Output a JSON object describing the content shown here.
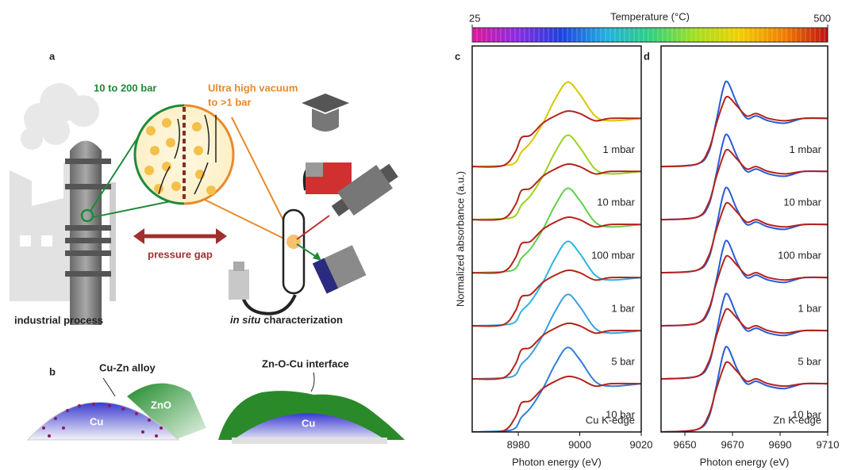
{
  "diagram": {
    "panel_a": {
      "label": "a",
      "high_pressure": "10 to 200 bar",
      "low_pressure": [
        "Ultra high vacuum",
        "to >1 bar"
      ],
      "gap": "pressure gap",
      "left_caption": "industrial process",
      "right_caption": {
        "italic": "in situ",
        "rest": "characterization"
      }
    },
    "panel_b": {
      "label": "b",
      "alloy": "Cu-Zn alloy",
      "oxide": "ZnO",
      "metal_left": "Cu",
      "interface": "Zn-O-Cu interface",
      "metal_right": "Cu"
    }
  },
  "chart_data": [
    {
      "type": "colorbar",
      "title": "Temperature (°C)",
      "xlim": [
        25,
        500
      ],
      "xticks": [
        25,
        500
      ],
      "colors": [
        "#e0169a",
        "#8a2be2",
        "#2040e0",
        "#20b0e0",
        "#30d080",
        "#a0e020",
        "#f0d000",
        "#f08000",
        "#c01010"
      ]
    },
    {
      "type": "line",
      "panel_label": "c",
      "note": "Cu K-edge",
      "xlabel": "Photon energy (eV)",
      "ylabel": "Normalized absorbance (a.u.)",
      "xlim": [
        8965,
        9020
      ],
      "xticks": [
        8980,
        9000,
        9020
      ],
      "ylim": [
        0,
        8
      ],
      "condition_labels": [
        "1 mbar",
        "10 mbar",
        "100 mbar",
        "1 bar",
        "5 bar",
        "10 bar"
      ],
      "x": [
        8965,
        8975,
        8979,
        8981,
        8984,
        8988,
        8992,
        8996,
        9000,
        9005,
        9010,
        9020
      ],
      "series": [
        {
          "color": "#d8c800",
          "values": [
            5.5,
            5.52,
            5.58,
            5.8,
            6.0,
            6.4,
            6.9,
            7.25,
            7.0,
            6.55,
            6.45,
            6.5
          ]
        },
        {
          "color": "#b3241b",
          "values": [
            5.5,
            5.52,
            5.8,
            6.1,
            6.15,
            6.4,
            6.55,
            6.65,
            6.6,
            6.45,
            6.5,
            6.5
          ]
        },
        {
          "color": "#9bd21e",
          "values": [
            4.4,
            4.42,
            4.48,
            4.7,
            4.9,
            5.3,
            5.8,
            6.15,
            5.9,
            5.45,
            5.35,
            5.4
          ]
        },
        {
          "color": "#b3241b",
          "values": [
            4.4,
            4.42,
            4.7,
            5.0,
            5.05,
            5.3,
            5.45,
            5.55,
            5.5,
            5.35,
            5.4,
            5.4
          ]
        },
        {
          "color": "#5fcf4a",
          "values": [
            3.3,
            3.32,
            3.38,
            3.6,
            3.8,
            4.2,
            4.7,
            5.05,
            4.8,
            4.35,
            4.25,
            4.3
          ]
        },
        {
          "color": "#b3241b",
          "values": [
            3.3,
            3.32,
            3.6,
            3.9,
            3.95,
            4.2,
            4.35,
            4.45,
            4.4,
            4.25,
            4.3,
            4.3
          ]
        },
        {
          "color": "#2bb6e0",
          "values": [
            2.2,
            2.22,
            2.28,
            2.5,
            2.7,
            3.1,
            3.6,
            3.95,
            3.7,
            3.25,
            3.15,
            3.2
          ]
        },
        {
          "color": "#b3241b",
          "values": [
            2.2,
            2.22,
            2.5,
            2.8,
            2.85,
            3.1,
            3.25,
            3.35,
            3.3,
            3.15,
            3.2,
            3.2
          ]
        },
        {
          "color": "#3aa0e0",
          "values": [
            1.1,
            1.12,
            1.18,
            1.4,
            1.6,
            2.0,
            2.5,
            2.85,
            2.6,
            2.15,
            2.05,
            2.1
          ]
        },
        {
          "color": "#b3241b",
          "values": [
            1.1,
            1.12,
            1.4,
            1.7,
            1.75,
            2.0,
            2.15,
            2.25,
            2.2,
            2.05,
            2.1,
            2.1
          ]
        },
        {
          "color": "#2f7fd8",
          "values": [
            0,
            0.02,
            0.08,
            0.3,
            0.5,
            0.9,
            1.4,
            1.75,
            1.5,
            1.05,
            0.95,
            1.0
          ]
        },
        {
          "color": "#b3241b",
          "values": [
            0,
            0.02,
            0.3,
            0.6,
            0.65,
            0.9,
            1.05,
            1.15,
            1.1,
            0.95,
            1.0,
            1.0
          ]
        }
      ]
    },
    {
      "type": "line",
      "panel_label": "d",
      "note": "Zn K-edge",
      "xlabel": "Photon energy (eV)",
      "xlim": [
        9640,
        9710
      ],
      "xticks": [
        9650,
        9670,
        9690,
        9710
      ],
      "ylim": [
        0,
        8
      ],
      "condition_labels": [
        "1 mbar",
        "10 mbar",
        "100 mbar",
        "1 bar",
        "5 bar",
        "10 bar"
      ],
      "x": [
        9640,
        9655,
        9660,
        9663,
        9666,
        9668,
        9672,
        9676,
        9680,
        9685,
        9692,
        9700,
        9710
      ],
      "series": [
        {
          "color": "#2a5bd7",
          "values": [
            5.5,
            5.55,
            5.8,
            6.4,
            7.1,
            7.25,
            6.8,
            6.5,
            6.55,
            6.45,
            6.4,
            6.5,
            6.5
          ]
        },
        {
          "color": "#b3241b",
          "values": [
            5.5,
            5.55,
            5.85,
            6.35,
            6.8,
            6.95,
            6.75,
            6.55,
            6.6,
            6.5,
            6.45,
            6.5,
            6.5
          ]
        },
        {
          "color": "#2a5bd7",
          "values": [
            4.4,
            4.45,
            4.7,
            5.3,
            6.0,
            6.15,
            5.7,
            5.4,
            5.45,
            5.35,
            5.3,
            5.4,
            5.4
          ]
        },
        {
          "color": "#b3241b",
          "values": [
            4.4,
            4.45,
            4.75,
            5.25,
            5.7,
            5.85,
            5.65,
            5.45,
            5.5,
            5.4,
            5.35,
            5.4,
            5.4
          ]
        },
        {
          "color": "#2a5bd7",
          "values": [
            3.3,
            3.35,
            3.6,
            4.2,
            4.9,
            5.05,
            4.6,
            4.3,
            4.35,
            4.25,
            4.2,
            4.3,
            4.3
          ]
        },
        {
          "color": "#b3241b",
          "values": [
            3.3,
            3.35,
            3.65,
            4.15,
            4.6,
            4.75,
            4.55,
            4.35,
            4.4,
            4.3,
            4.25,
            4.3,
            4.3
          ]
        },
        {
          "color": "#2a5bd7",
          "values": [
            2.2,
            2.25,
            2.5,
            3.1,
            3.8,
            3.95,
            3.5,
            3.2,
            3.25,
            3.15,
            3.1,
            3.2,
            3.2
          ]
        },
        {
          "color": "#b3241b",
          "values": [
            2.2,
            2.25,
            2.55,
            3.05,
            3.5,
            3.65,
            3.45,
            3.25,
            3.3,
            3.2,
            3.15,
            3.2,
            3.2
          ]
        },
        {
          "color": "#2a5bd7",
          "values": [
            1.1,
            1.15,
            1.4,
            2.0,
            2.7,
            2.85,
            2.4,
            2.1,
            2.15,
            2.05,
            2.0,
            2.1,
            2.1
          ]
        },
        {
          "color": "#b3241b",
          "values": [
            1.1,
            1.15,
            1.45,
            1.95,
            2.4,
            2.55,
            2.35,
            2.15,
            2.2,
            2.1,
            2.05,
            2.1,
            2.1
          ]
        },
        {
          "color": "#2a5bd7",
          "values": [
            0,
            0.05,
            0.3,
            0.9,
            1.6,
            1.75,
            1.3,
            1.0,
            1.05,
            0.95,
            0.9,
            1.0,
            1.0
          ]
        },
        {
          "color": "#b3241b",
          "values": [
            0,
            0.05,
            0.35,
            0.85,
            1.3,
            1.45,
            1.25,
            1.05,
            1.1,
            1.0,
            0.95,
            1.0,
            1.0
          ]
        }
      ]
    }
  ]
}
